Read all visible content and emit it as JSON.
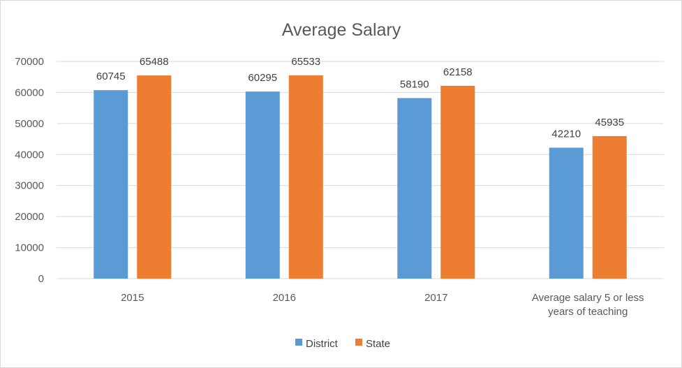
{
  "chart_data": {
    "type": "bar",
    "title": "Average Salary",
    "xlabel": "",
    "ylabel": "",
    "ylim": [
      0,
      70000
    ],
    "yticks": [
      0,
      10000,
      20000,
      30000,
      40000,
      50000,
      60000,
      70000
    ],
    "grid": true,
    "legend_position": "bottom",
    "categories": [
      [
        "2015"
      ],
      [
        "2016"
      ],
      [
        "2017"
      ],
      [
        "Average salary 5 or less",
        "years of teaching"
      ]
    ],
    "series": [
      {
        "name": "District",
        "color": "#5b9bd5",
        "values": [
          60745,
          60295,
          58190,
          42210
        ]
      },
      {
        "name": "State",
        "color": "#ed7d31",
        "values": [
          65488,
          65533,
          62158,
          45935
        ]
      }
    ]
  }
}
